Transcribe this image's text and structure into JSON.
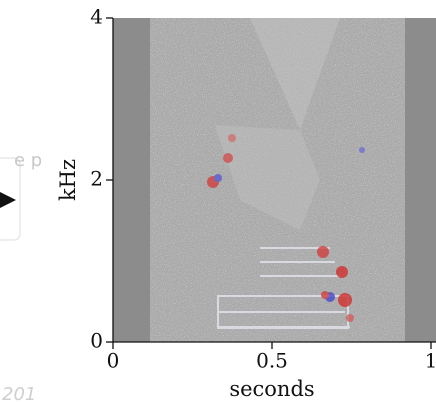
{
  "chart_data": {
    "type": "spectrogram",
    "xlabel": "seconds",
    "ylabel": "kHz",
    "xlim": [
      0,
      1
    ],
    "ylim": [
      0,
      4
    ],
    "xticks": [
      0,
      0.5,
      1
    ],
    "yticks": [
      0,
      2,
      4
    ]
  },
  "fragments": {
    "left_text": "e p",
    "bottom_text": "201"
  }
}
